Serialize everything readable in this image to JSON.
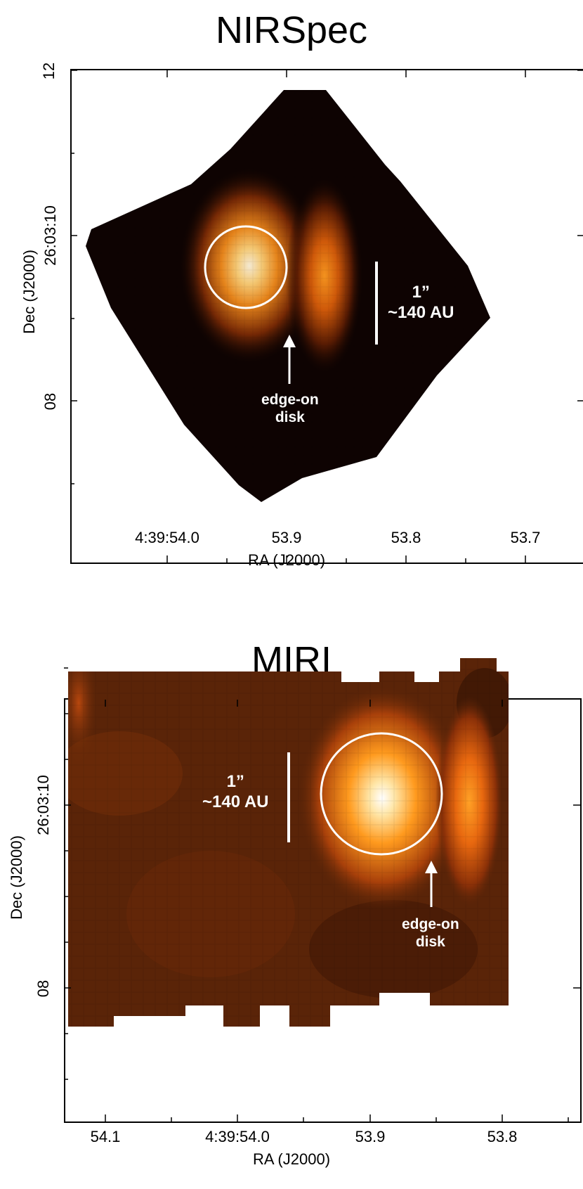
{
  "panels": {
    "top": {
      "title": "NIRSpec",
      "y_axis_label": "Dec (J2000)",
      "x_axis_label": "RA (J2000)",
      "y_ticks": [
        "12",
        "26:03:10",
        "08"
      ],
      "x_ticks": [
        "4:39:54.0",
        "53.9",
        "53.8",
        "53.7"
      ],
      "scale_bar": {
        "line1": "1”",
        "line2": "~140 AU"
      },
      "annotation": {
        "line1": "edge-on",
        "line2": "disk"
      },
      "colors": {
        "background": "#0e0302",
        "peak": "#fff2d8"
      }
    },
    "bottom": {
      "title": "MIRI",
      "y_axis_label": "Dec (J2000)",
      "x_axis_label": "RA (J2000)",
      "y_ticks": [
        "26:03:10",
        "08"
      ],
      "x_ticks": [
        "54.1",
        "4:39:54.0",
        "53.9",
        "53.8"
      ],
      "scale_bar": {
        "line1": "1”",
        "line2": "~140 AU"
      },
      "annotation": {
        "line1": "edge-on",
        "line2": "disk"
      },
      "colors": {
        "background": "#5a2408",
        "peak": "#ffffff"
      }
    }
  }
}
